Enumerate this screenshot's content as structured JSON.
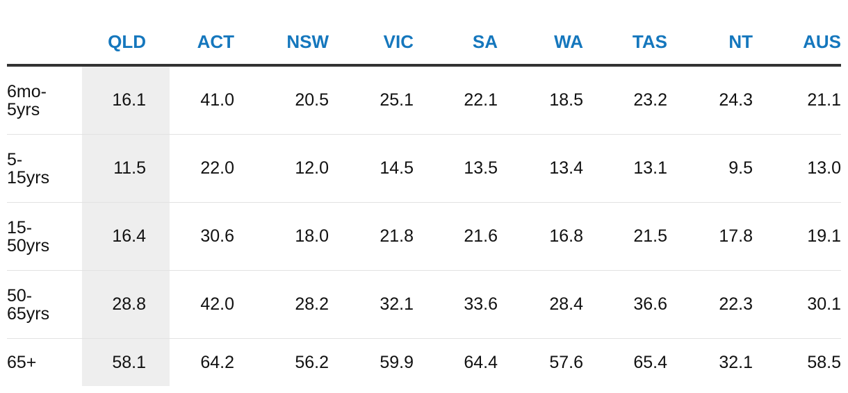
{
  "chart_data": {
    "type": "table",
    "columns": [
      "QLD",
      "ACT",
      "NSW",
      "VIC",
      "SA",
      "WA",
      "TAS",
      "NT",
      "AUS"
    ],
    "highlight_column": "QLD",
    "highlight_color": "#eeeeee",
    "header_color": "#1577bd",
    "rows": [
      {
        "label": "6mo-\n5yrs",
        "values": [
          "16.1",
          "41.0",
          "20.5",
          "25.1",
          "22.1",
          "18.5",
          "23.2",
          "24.3",
          "21.1"
        ]
      },
      {
        "label": "5-\n15yrs",
        "values": [
          "11.5",
          "22.0",
          "12.0",
          "14.5",
          "13.5",
          "13.4",
          "13.1",
          "9.5",
          "13.0"
        ]
      },
      {
        "label": "15-\n50yrs",
        "values": [
          "16.4",
          "30.6",
          "18.0",
          "21.8",
          "21.6",
          "16.8",
          "21.5",
          "17.8",
          "19.1"
        ]
      },
      {
        "label": "50-\n65yrs",
        "values": [
          "28.8",
          "42.0",
          "28.2",
          "32.1",
          "33.6",
          "28.4",
          "36.6",
          "22.3",
          "30.1"
        ]
      },
      {
        "label": "65+",
        "values": [
          "58.1",
          "64.2",
          "56.2",
          "59.9",
          "64.4",
          "57.6",
          "65.4",
          "32.1",
          "58.5"
        ]
      }
    ]
  }
}
